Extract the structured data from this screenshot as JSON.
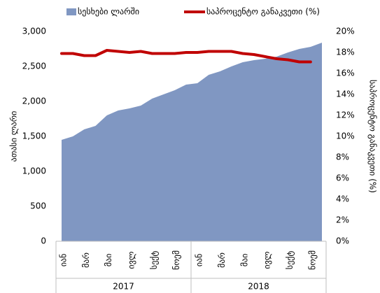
{
  "chart_data": {
    "type": "area_line",
    "categories": [
      "იან",
      null,
      "მარ",
      null,
      "მაი",
      null,
      "ივლ",
      null,
      "სექტ",
      null,
      "ნოემ",
      null,
      "იან",
      null,
      "მარ",
      null,
      "მაი",
      null,
      "ივლ",
      null,
      "სექტ",
      null,
      "ნოემ",
      null
    ],
    "year_groups": [
      "2017",
      "2018"
    ],
    "series": [
      {
        "name": "სესხები ლარში",
        "color": "#8097c2",
        "kind": "area",
        "axis": "y",
        "values": [
          1450,
          1500,
          1600,
          1650,
          1800,
          1870,
          1900,
          1940,
          2040,
          2100,
          2160,
          2240,
          2260,
          2380,
          2430,
          2500,
          2560,
          2590,
          2610,
          2640,
          2700,
          2750,
          2780,
          2840
        ]
      },
      {
        "name": "საპროცენტო განაკვეთი (%)",
        "color": "#c00000",
        "kind": "line",
        "axis": "y2",
        "values": [
          17.9,
          17.9,
          17.7,
          17.7,
          18.2,
          18.1,
          18.0,
          18.1,
          17.9,
          17.9,
          17.9,
          18.0,
          18.0,
          18.1,
          18.1,
          18.1,
          17.9,
          17.8,
          17.6,
          17.4,
          17.3,
          17.1,
          17.1,
          null
        ]
      }
    ],
    "ylabel": "ათასი ლარი",
    "y2label": "საპროცენტო განაკვეთი (%)",
    "ylim": [
      0,
      3000
    ],
    "yticks": [
      0,
      500,
      {
        "value": 1000,
        "label": "1,000"
      },
      {
        "value": 1500,
        "label": "1,500"
      },
      {
        "value": 2000,
        "label": "2,000"
      },
      {
        "value": 2500,
        "label": "2,500"
      },
      {
        "value": 3000,
        "label": "3,000"
      }
    ],
    "y2lim": [
      0,
      20
    ],
    "y2ticks": [
      {
        "value": 0,
        "label": "0%"
      },
      {
        "value": 2,
        "label": "2%"
      },
      {
        "value": 4,
        "label": "4%"
      },
      {
        "value": 6,
        "label": "6%"
      },
      {
        "value": 8,
        "label": "8%"
      },
      {
        "value": 10,
        "label": "10%"
      },
      {
        "value": 12,
        "label": "12%"
      },
      {
        "value": 14,
        "label": "14%"
      },
      {
        "value": 16,
        "label": "16%"
      },
      {
        "value": 18,
        "label": "18%"
      },
      {
        "value": 20,
        "label": "20%"
      }
    ]
  }
}
